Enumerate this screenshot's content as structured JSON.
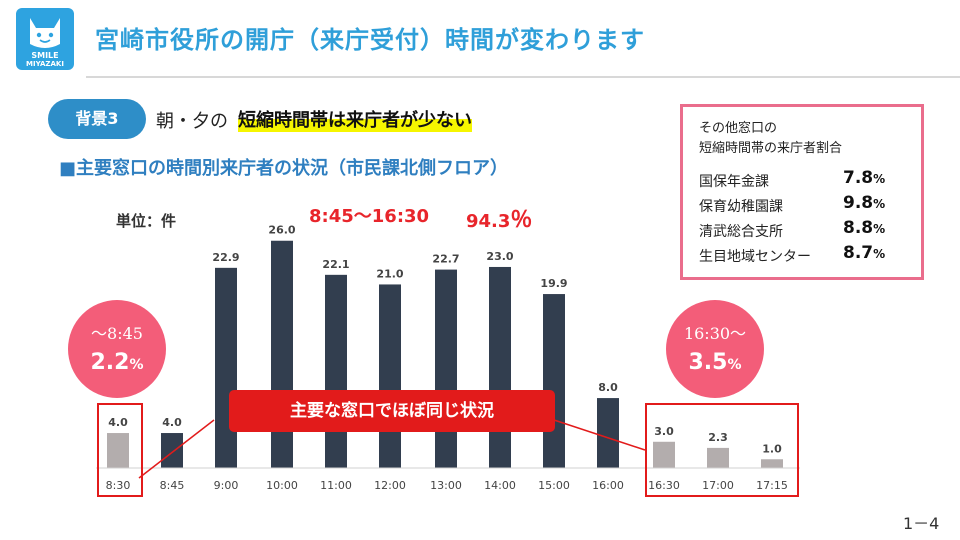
{
  "logo": {
    "line1": "SMILE",
    "line2": "MIYAZAKI"
  },
  "header": {
    "title": "宮崎市役所の開庁（来庁受付）時間が変わります"
  },
  "background": {
    "badge": "背景3",
    "prefix": "朝・夕の",
    "highlight": "短縮時間帯は来庁者が少ない"
  },
  "subtitle": "■主要窓口の時間別来庁者の状況（市民課北側フロア）",
  "chart_data": {
    "type": "bar",
    "unit_label": "単位：件",
    "categories": [
      "8:30",
      "8:45",
      "9:00",
      "10:00",
      "11:00",
      "12:00",
      "13:00",
      "14:00",
      "15:00",
      "16:00",
      "16:30",
      "17:00",
      "17:15"
    ],
    "values": [
      4.0,
      4.0,
      22.9,
      26.0,
      22.1,
      21.0,
      22.7,
      23.0,
      19.9,
      8.0,
      3.0,
      2.3,
      1.0
    ],
    "data_labels": [
      "4.0",
      "4.0",
      "22.9",
      "26.0",
      "22.1",
      "21.0",
      "22.7",
      "23.0",
      "19.9",
      "8.0",
      "3.0",
      "2.3",
      "1.0"
    ],
    "highlight_category": [
      "8:30",
      "16:30",
      "17:00",
      "17:15"
    ],
    "colors": {
      "main": "#323e4f",
      "short": "#b3adad"
    },
    "ylim": [
      0,
      27
    ],
    "range_label": "8:45～16:30",
    "range_value": "94.3",
    "range_unit": "％"
  },
  "circles": {
    "left": {
      "time": "～8:45",
      "value": "2.2",
      "unit": "%"
    },
    "right": {
      "time": "16:30～",
      "value": "3.5",
      "unit": "%"
    }
  },
  "callout": "主要な窓口でほぼ同じ状況",
  "other_windows": {
    "heading_line1": "その他窓口の",
    "heading_line2": "短縮時間帯の来庁者割合",
    "rows": [
      {
        "name": "国保年金課",
        "value": "7.8",
        "unit": "%"
      },
      {
        "name": "保育幼稚園課",
        "value": "9.8",
        "unit": "%"
      },
      {
        "name": "清武総合支所",
        "value": "8.8",
        "unit": "%"
      },
      {
        "name": "生目地域センター",
        "value": "8.7",
        "unit": "%"
      }
    ]
  },
  "page_number": "1－4"
}
